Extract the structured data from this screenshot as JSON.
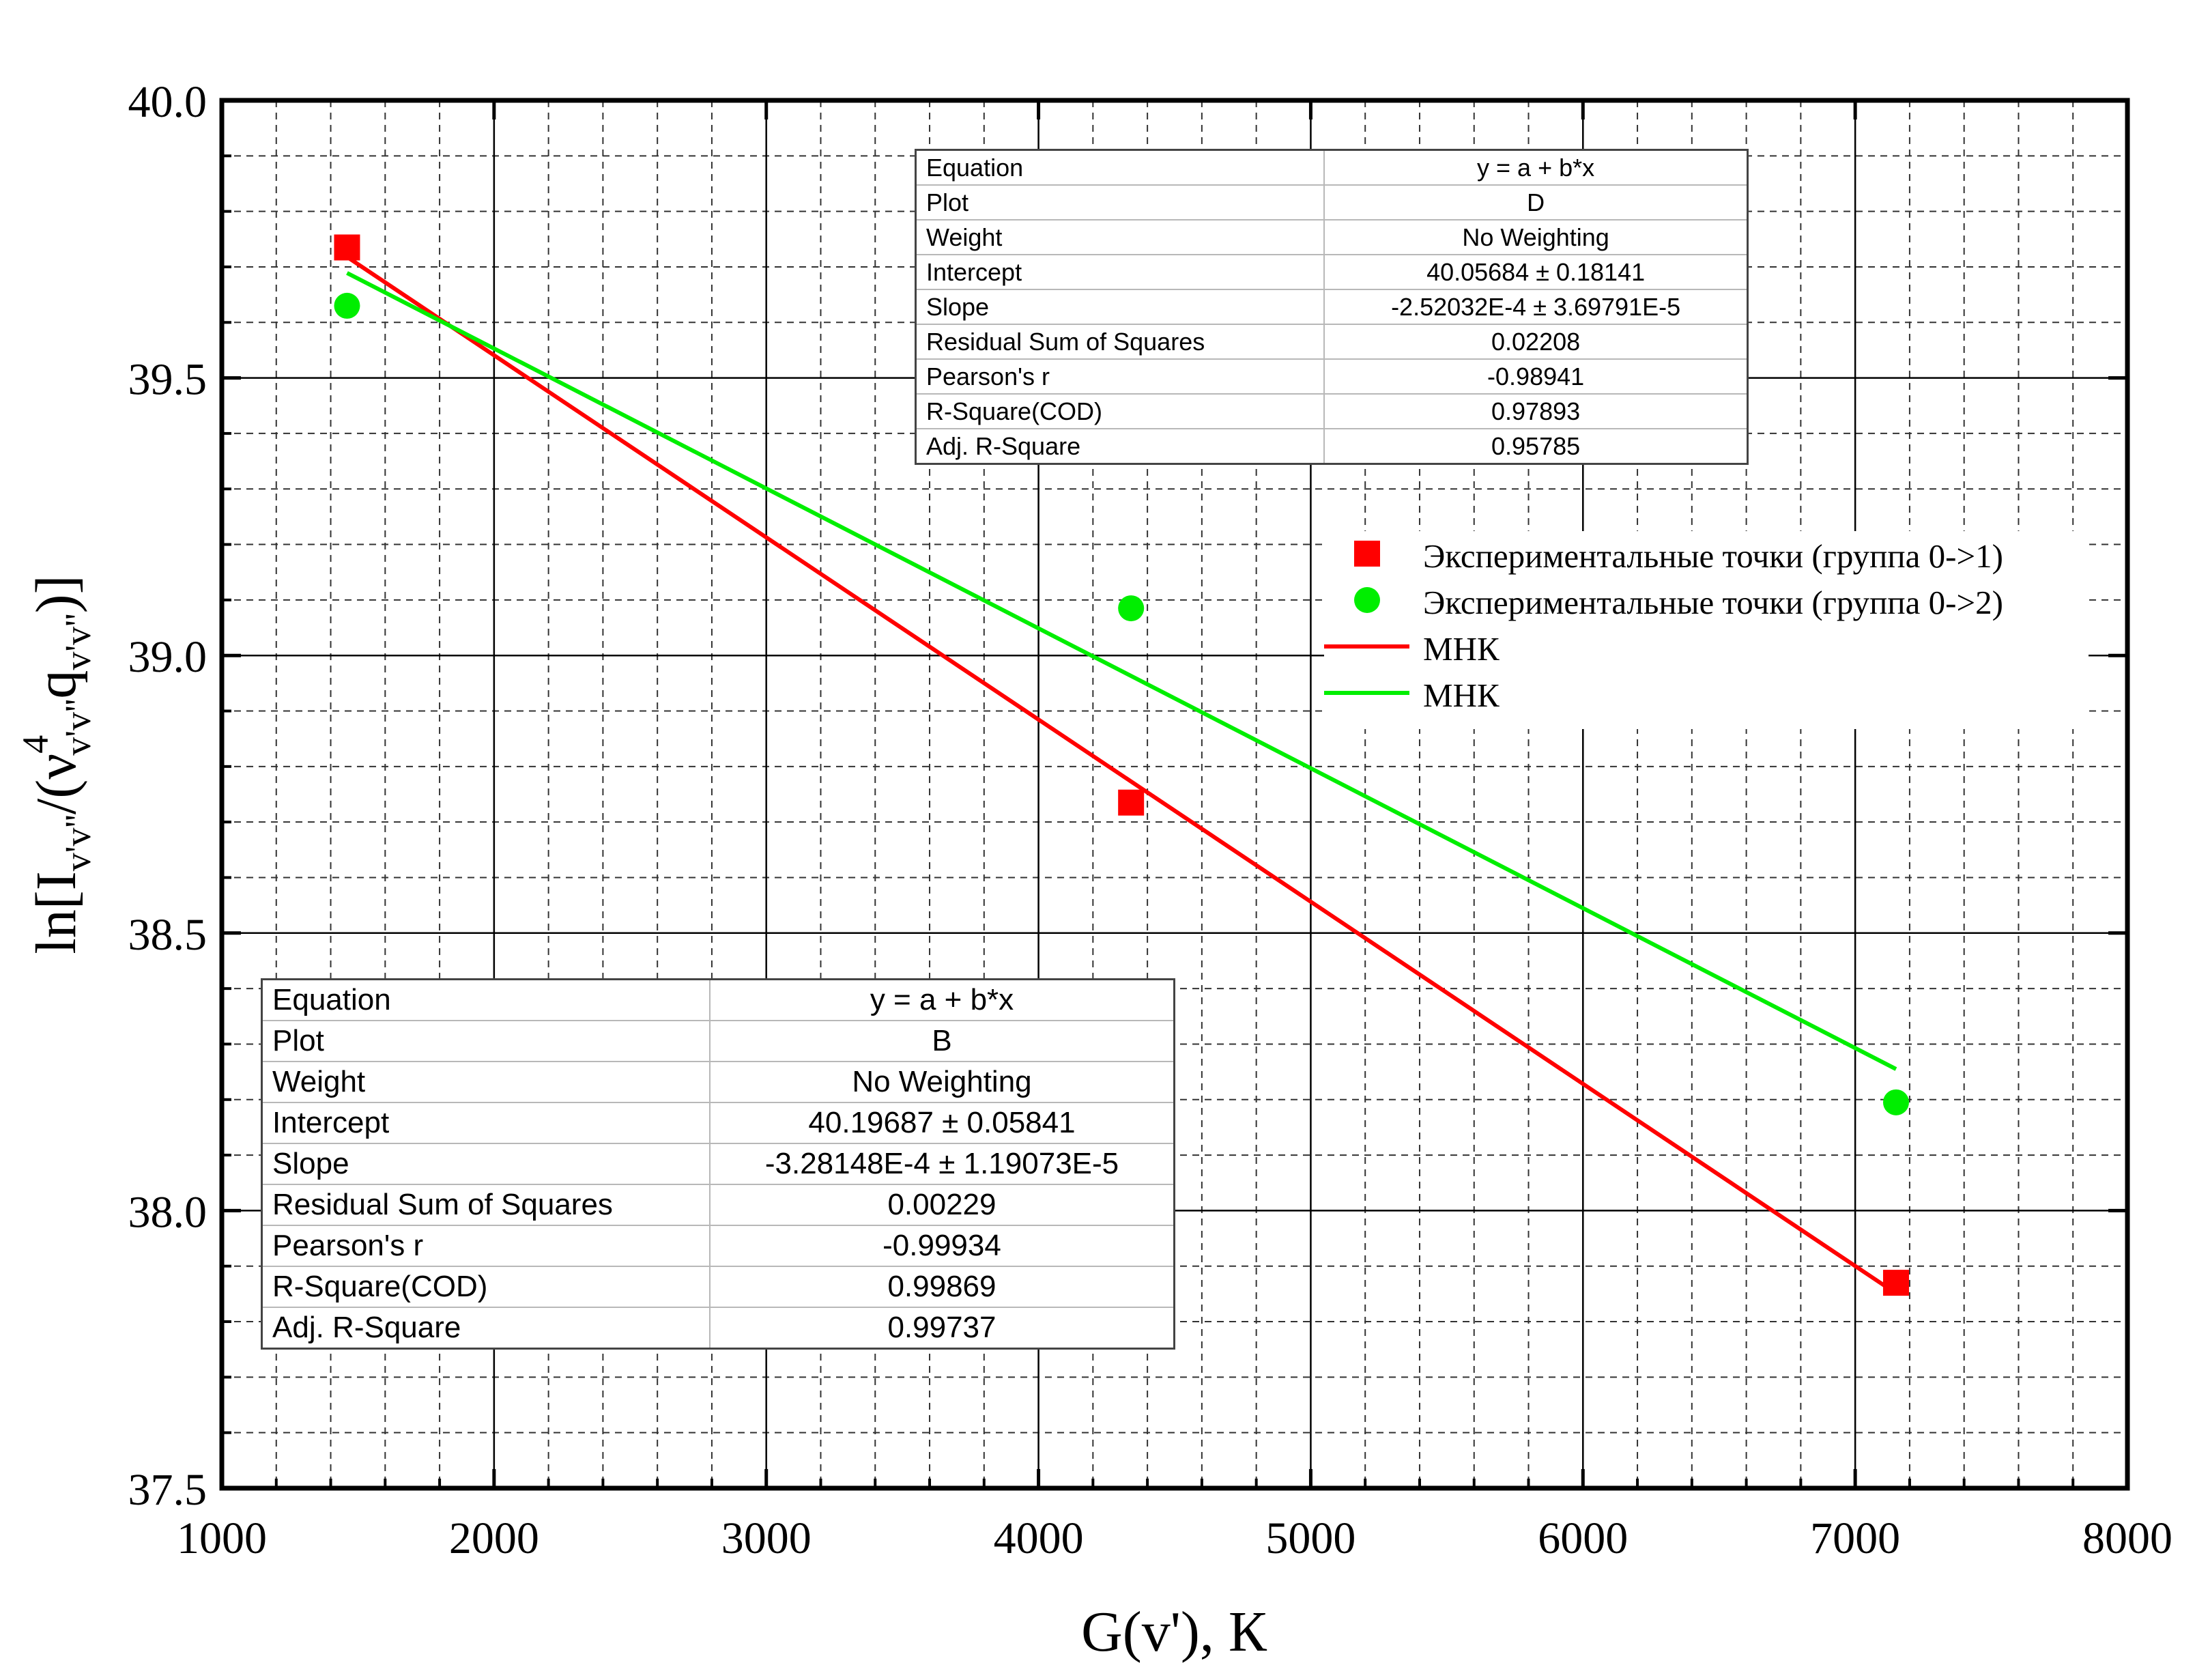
{
  "chart_data": {
    "type": "scatter",
    "xlabel": "G(v'), К",
    "ylabel": {
      "base": "ln[I",
      "base_sub": "v'v''",
      "mid": "/(ν",
      "mid_sup": "4",
      "mid_sub": "v'v''",
      "q": "q",
      "q_sub": "v'v''",
      "end": ")]"
    },
    "xlim": [
      1000,
      8000
    ],
    "ylim": [
      37.5,
      40.0
    ],
    "x_ticks": [
      "1000",
      "2000",
      "3000",
      "4000",
      "5000",
      "6000",
      "7000",
      "8000"
    ],
    "y_ticks": [
      "37.5",
      "38.0",
      "38.5",
      "39.0",
      "39.5",
      "40.0"
    ],
    "grid": true,
    "legend_position": "right",
    "series": [
      {
        "name": "Экспериментальные точки (группа 0->1)",
        "kind": "scatter",
        "marker": "square",
        "color": "#ff0000",
        "x": [
          1460,
          4340,
          7150
        ],
        "y": [
          39.735,
          38.735,
          37.87
        ]
      },
      {
        "name": "Экспериментальные точки (группа 0->2)",
        "kind": "scatter",
        "marker": "circle",
        "color": "#00ee00",
        "x": [
          1460,
          4340,
          7150
        ],
        "y": [
          39.63,
          39.085,
          38.195
        ]
      },
      {
        "name": "МНК",
        "kind": "line",
        "color": "#ff0000",
        "x": [
          1460,
          7150
        ],
        "y": [
          39.718,
          37.851
        ]
      },
      {
        "name": "МНК",
        "kind": "line",
        "color": "#00ee00",
        "x": [
          1460,
          7150
        ],
        "y": [
          39.689,
          38.255
        ]
      }
    ]
  },
  "fit_tables": {
    "top": {
      "rows": [
        {
          "label": "Equation",
          "value": "y = a + b*x"
        },
        {
          "label": "Plot",
          "value": "D"
        },
        {
          "label": "Weight",
          "value": "No Weighting"
        },
        {
          "label": "Intercept",
          "value": "40.05684 ± 0.18141"
        },
        {
          "label": "Slope",
          "value": "-2.52032E-4 ± 3.69791E-5"
        },
        {
          "label": "Residual Sum of Squares",
          "value": "0.02208"
        },
        {
          "label": "Pearson's r",
          "value": "-0.98941"
        },
        {
          "label": "R-Square(COD)",
          "value": "0.97893"
        },
        {
          "label": "Adj. R-Square",
          "value": "0.95785"
        }
      ]
    },
    "bottom": {
      "rows": [
        {
          "label": "Equation",
          "value": "y = a + b*x"
        },
        {
          "label": "Plot",
          "value": "B"
        },
        {
          "label": "Weight",
          "value": "No Weighting"
        },
        {
          "label": "Intercept",
          "value": "40.19687 ± 0.05841"
        },
        {
          "label": "Slope",
          "value": "-3.28148E-4 ± 1.19073E-5"
        },
        {
          "label": "Residual Sum of Squares",
          "value": "0.00229"
        },
        {
          "label": "Pearson's r",
          "value": "-0.99934"
        },
        {
          "label": "R-Square(COD)",
          "value": "0.99869"
        },
        {
          "label": "Adj. R-Square",
          "value": "0.99737"
        }
      ]
    }
  }
}
